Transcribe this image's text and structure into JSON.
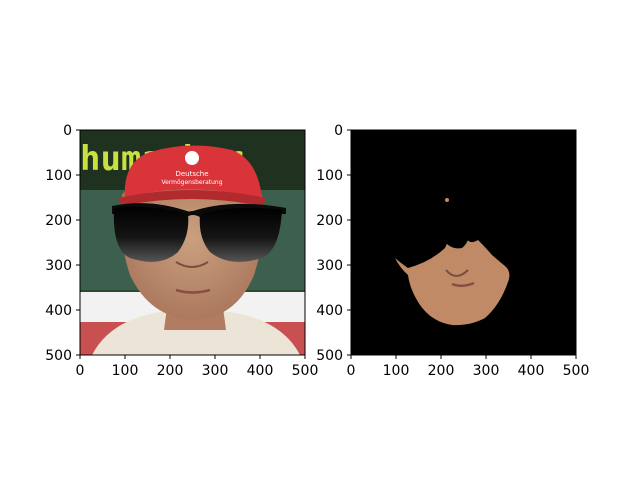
{
  "figure": {
    "background": "#ffffff",
    "axis_color": "#000000"
  },
  "chart_data": [
    {
      "type": "image",
      "panel": "left",
      "content": "face photo with overlaid black sunglasses",
      "background_words": "humacher",
      "cap_text": [
        "Deutsche",
        "Vermögensberatung"
      ],
      "colors": {
        "cap": "#d8343a",
        "banner": "#1f3a1f",
        "banner_text": "#c8e040",
        "skin": "#b98a6c",
        "shirt": "#ece4d6",
        "lenses": "#111111"
      },
      "xlim": [
        0,
        500
      ],
      "ylim": [
        500,
        0
      ],
      "xticks": [
        0,
        100,
        200,
        300,
        400,
        500
      ],
      "yticks": [
        0,
        100,
        200,
        300,
        400,
        500
      ],
      "x_tick_labels": [
        "0",
        "100",
        "200",
        "300",
        "400",
        "500"
      ],
      "y_tick_labels": [
        "0",
        "100",
        "200",
        "300",
        "400",
        "500"
      ],
      "title": "",
      "xlabel": "",
      "ylabel": ""
    },
    {
      "type": "image",
      "panel": "right",
      "content": "segmented face region on black background",
      "colors": {
        "background": "#000000",
        "skin": "#c08a66"
      },
      "xlim": [
        0,
        500
      ],
      "ylim": [
        500,
        0
      ],
      "xticks": [
        0,
        100,
        200,
        300,
        400,
        500
      ],
      "yticks": [
        0,
        100,
        200,
        300,
        400,
        500
      ],
      "x_tick_labels": [
        "0",
        "100",
        "200",
        "300",
        "400",
        "500"
      ],
      "y_tick_labels": [
        "0",
        "100",
        "200",
        "300",
        "400",
        "500"
      ],
      "title": "",
      "xlabel": "",
      "ylabel": ""
    }
  ]
}
